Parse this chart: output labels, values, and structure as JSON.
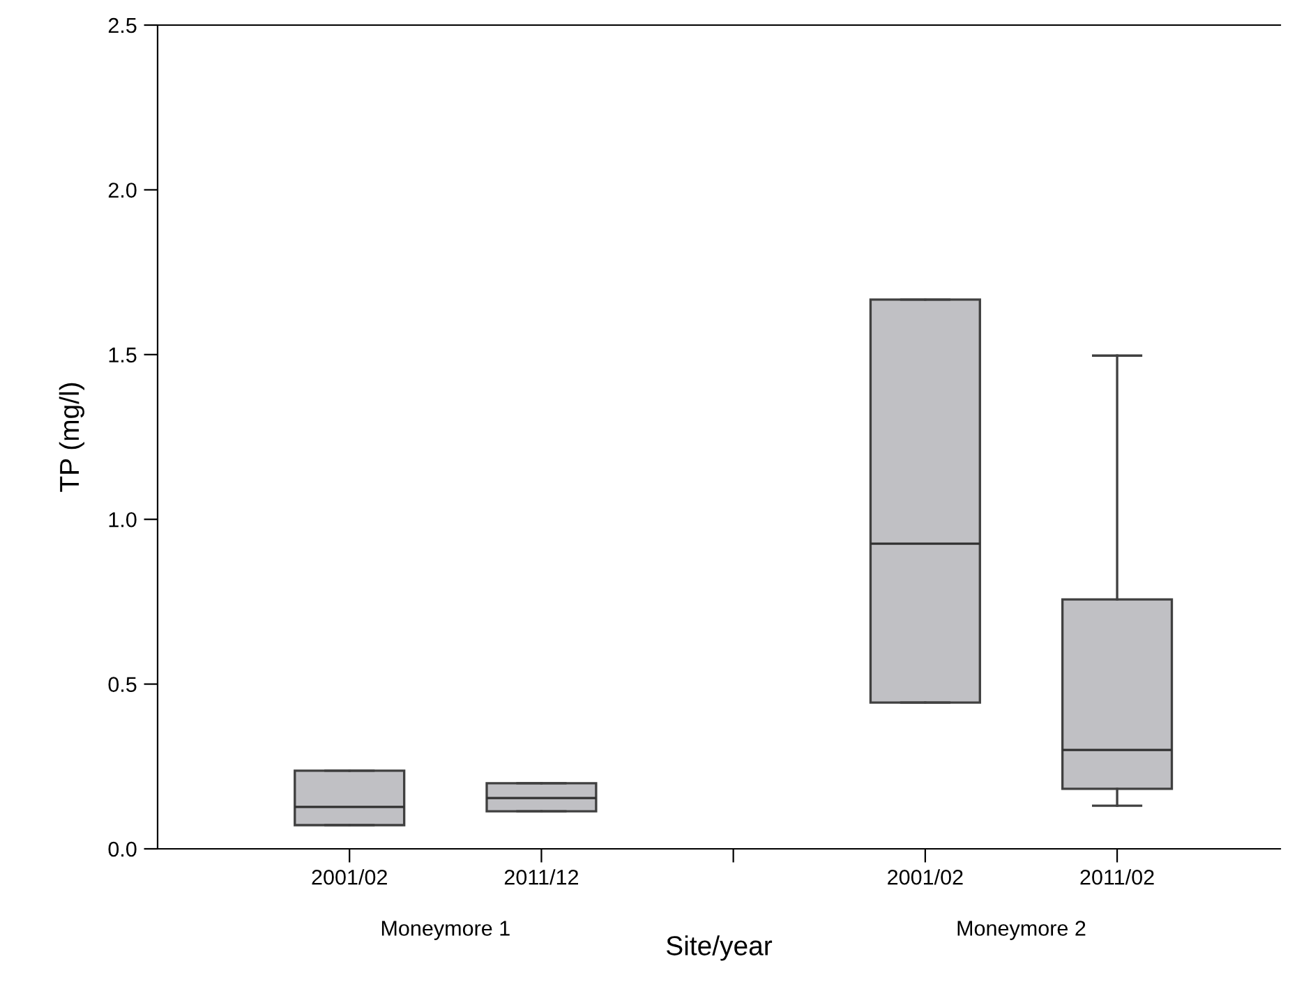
{
  "chart_data": {
    "type": "box",
    "xlabel": "Site/year",
    "ylabel": "TP (mg/l)",
    "categories": [
      "2001/02",
      "2011/12",
      null,
      "2001/02",
      "2011/02"
    ],
    "annotations": [
      "Moneymore 1",
      "Moneymore 2"
    ],
    "color": "#c0c0c4",
    "boxes": [
      {
        "low": 0.072,
        "q1": 0.072,
        "median": 0.127,
        "q3": 0.237,
        "high": 0.237
      },
      {
        "low": 0.114,
        "q1": 0.114,
        "median": 0.154,
        "q3": 0.199,
        "high": 0.199
      },
      null,
      {
        "low": 0.444,
        "q1": 0.444,
        "median": 0.926,
        "q3": 1.667,
        "high": 1.667
      },
      {
        "low": 0.131,
        "q1": 0.182,
        "median": 0.3,
        "q3": 0.757,
        "high": 1.497
      }
    ],
    "ylim": [
      0,
      2.5
    ],
    "yticks": [
      {
        "value": 0,
        "label": "0.0"
      },
      {
        "value": 0.5,
        "label": "0.5"
      },
      {
        "value": 1,
        "label": "1.0"
      },
      {
        "value": 1.5,
        "label": "1.5"
      },
      {
        "value": 2,
        "label": "2.0"
      },
      {
        "value": 2.5,
        "label": "2.5"
      }
    ],
    "grid": false
  }
}
